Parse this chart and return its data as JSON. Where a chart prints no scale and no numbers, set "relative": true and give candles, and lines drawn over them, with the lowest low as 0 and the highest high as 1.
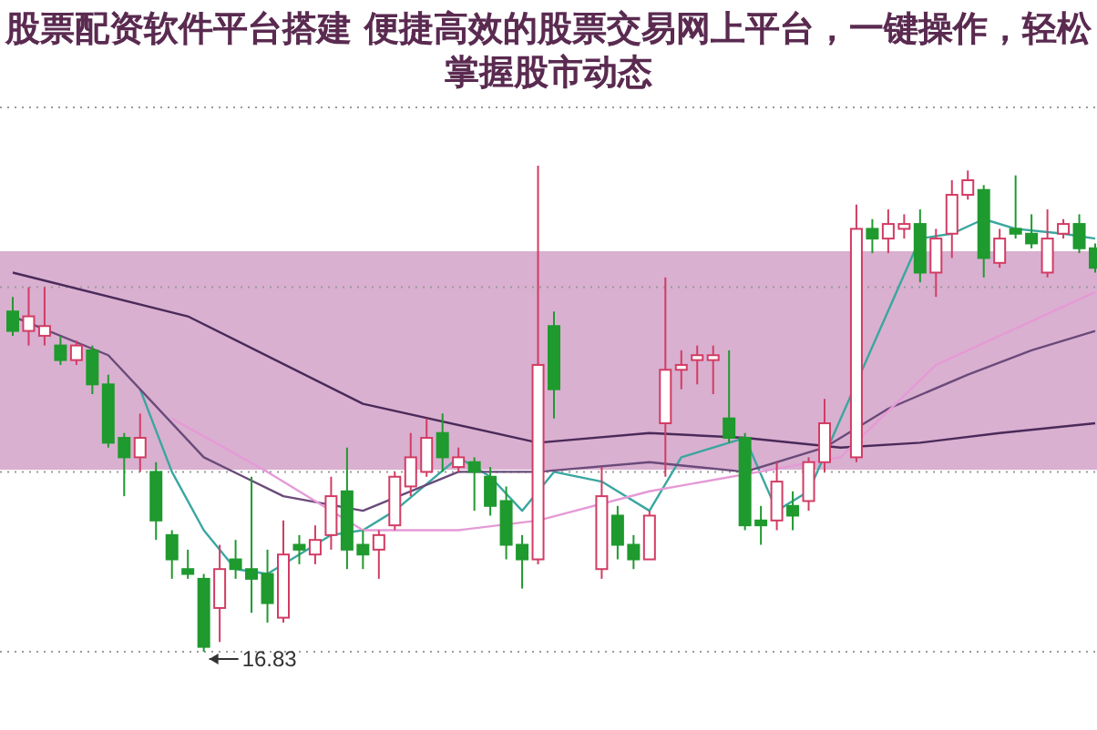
{
  "chart_data": {
    "type": "candlestick",
    "title": "股票配资软件平台搭建 便捷高效的股票交易网上平台，一键操作，轻松掌握股市动态",
    "relative": true,
    "ref_lines": [
      {
        "axis": "y",
        "value": 1.12,
        "color": "#9a9a9a",
        "line_style": "dotted"
      },
      {
        "axis": "y",
        "value": 0.75,
        "color": "#9a9a9a",
        "line_style": "dotted"
      },
      {
        "axis": "y",
        "value": 0.37,
        "color": "#9a9a9a",
        "line_style": "dotted"
      },
      {
        "axis": "y",
        "value": 0,
        "color": "#9a9a9a",
        "line_style": "dotted"
      }
    ],
    "categories": [
      null,
      null,
      null,
      null,
      null,
      null,
      null,
      null,
      null,
      null,
      null,
      null,
      null,
      null,
      null,
      null,
      null,
      null,
      null,
      null,
      null,
      null,
      null,
      null,
      null,
      null,
      null,
      null,
      null,
      null,
      null,
      null,
      null,
      null,
      null,
      null,
      null,
      null,
      null,
      null,
      null,
      null,
      null,
      null,
      null,
      null,
      null,
      null,
      null,
      null,
      null,
      null,
      null,
      null,
      null,
      null,
      null,
      null,
      null,
      null,
      null,
      null,
      null,
      null,
      null,
      null,
      null,
      null,
      null
    ],
    "ohlc": [
      [
        0.7,
        0.73,
        0.65,
        0.66
      ],
      [
        0.66,
        0.75,
        0.63,
        0.69
      ],
      [
        0.65,
        0.75,
        0.63,
        0.67
      ],
      [
        0.63,
        0.65,
        0.59,
        0.6
      ],
      [
        0.6,
        0.64,
        0.59,
        0.63
      ],
      [
        0.62,
        0.63,
        0.53,
        0.55
      ],
      [
        0.55,
        0.57,
        0.42,
        0.43
      ],
      [
        0.44,
        0.45,
        0.32,
        0.4
      ],
      [
        0.4,
        0.49,
        0.37,
        0.44
      ],
      [
        0.37,
        0.39,
        0.23,
        0.27
      ],
      [
        0.24,
        0.25,
        0.15,
        0.19
      ],
      [
        0.17,
        0.21,
        0.15,
        0.16
      ],
      [
        0.15,
        0.16,
        0,
        0.01
      ],
      [
        0.09,
        0.22,
        0.02,
        0.17
      ],
      [
        0.19,
        0.23,
        0.15,
        0.17
      ],
      [
        0.17,
        0.36,
        0.08,
        0.15
      ],
      [
        0.16,
        0.21,
        0.06,
        0.1
      ],
      [
        0.07,
        0.27,
        0.06,
        0.2
      ],
      [
        0.22,
        0.24,
        0.18,
        0.21
      ],
      [
        0.2,
        0.26,
        0.18,
        0.23
      ],
      [
        0.24,
        0.36,
        0.21,
        0.32
      ],
      [
        0.33,
        0.42,
        0.17,
        0.21
      ],
      [
        0.22,
        0.25,
        0.17,
        0.2
      ],
      [
        0.21,
        0.25,
        0.15,
        0.24
      ],
      [
        0.26,
        0.37,
        0.25,
        0.36
      ],
      [
        0.34,
        0.45,
        0.32,
        0.4
      ],
      [
        0.37,
        0.48,
        0.36,
        0.44
      ],
      [
        0.45,
        0.49,
        0.37,
        0.4
      ],
      [
        0.38,
        0.42,
        0.37,
        0.4
      ],
      [
        0.39,
        0.4,
        0.29,
        0.37
      ],
      [
        0.36,
        0.38,
        0.28,
        0.3
      ],
      [
        0.31,
        0.34,
        0.19,
        0.22
      ],
      [
        0.22,
        0.24,
        0.13,
        0.19
      ],
      [
        0.19,
        1,
        0.18,
        0.59
      ],
      [
        0.67,
        0.7,
        0.48,
        0.54
      ],
      null,
      null,
      [
        0.17,
        0.38,
        0.15,
        0.32
      ],
      [
        0.28,
        0.3,
        0.19,
        0.22
      ],
      [
        0.22,
        0.24,
        0.17,
        0.19
      ],
      [
        0.19,
        0.29,
        0.19,
        0.28
      ],
      [
        0.47,
        0.77,
        0.36,
        0.58
      ],
      [
        0.58,
        0.62,
        0.54,
        0.59
      ],
      [
        0.6,
        0.63,
        0.55,
        0.61
      ],
      [
        0.6,
        0.63,
        0.53,
        0.61
      ],
      [
        0.48,
        0.62,
        0.43,
        0.44
      ],
      [
        0.44,
        0.45,
        0.25,
        0.26
      ],
      [
        0.27,
        0.3,
        0.22,
        0.26
      ],
      [
        0.27,
        0.39,
        0.25,
        0.35
      ],
      [
        0.3,
        0.33,
        0.25,
        0.28
      ],
      [
        0.31,
        0.4,
        0.29,
        0.39
      ],
      [
        0.39,
        0.52,
        0.37,
        0.47
      ],
      null,
      [
        0.4,
        0.92,
        0.39,
        0.87
      ],
      [
        0.87,
        0.89,
        0.82,
        0.85
      ],
      [
        0.85,
        0.91,
        0.82,
        0.88
      ],
      [
        0.87,
        0.9,
        0.85,
        0.88
      ],
      [
        0.88,
        0.91,
        0.76,
        0.78
      ],
      [
        0.78,
        0.87,
        0.73,
        0.85
      ],
      [
        0.86,
        0.97,
        0.81,
        0.94
      ],
      [
        0.94,
        0.99,
        0.93,
        0.97
      ],
      [
        0.95,
        0.96,
        0.77,
        0.81
      ],
      [
        0.8,
        0.87,
        0.79,
        0.85
      ],
      [
        0.87,
        0.98,
        0.85,
        0.86
      ],
      [
        0.86,
        0.9,
        0.83,
        0.84
      ],
      [
        0.78,
        0.91,
        0.77,
        0.85
      ],
      [
        0.86,
        0.89,
        0.85,
        0.88
      ],
      [
        0.88,
        0.9,
        0.82,
        0.83
      ],
      [
        0.83,
        0.84,
        0.78,
        0.79
      ]
    ],
    "colors": [
      "#1f9a2e",
      "#d23c64",
      "#d23c64",
      "#1f9a2e",
      "#d23c64",
      "#1f9a2e",
      "#1f9a2e",
      "#1f9a2e",
      "#d23c64",
      "#1f9a2e",
      "#1f9a2e",
      "#1f9a2e",
      "#1f9a2e",
      "#d23c64",
      "#1f9a2e",
      "#1f9a2e",
      "#1f9a2e",
      "#d23c64",
      "#1f9a2e",
      "#d23c64",
      "#d23c64",
      "#1f9a2e",
      "#1f9a2e",
      "#d23c64",
      "#d23c64",
      "#d23c64",
      "#d23c64",
      "#1f9a2e",
      "#d23c64",
      "#1f9a2e",
      "#1f9a2e",
      "#1f9a2e",
      "#1f9a2e",
      "#d23c64",
      "#1f9a2e",
      null,
      null,
      "#d23c64",
      "#1f9a2e",
      "#1f9a2e",
      "#d23c64",
      "#d23c64",
      "#d23c64",
      "#d23c64",
      "#d23c64",
      "#1f9a2e",
      "#1f9a2e",
      "#1f9a2e",
      "#d23c64",
      "#1f9a2e",
      "#d23c64",
      "#d23c64",
      null,
      "#d23c64",
      "#1f9a2e",
      "#d23c64",
      "#d23c64",
      "#1f9a2e",
      "#d23c64",
      "#d23c64",
      "#d23c64",
      "#1f9a2e",
      "#d23c64",
      "#1f9a2e",
      "#1f9a2e",
      "#d23c64",
      "#d23c64",
      "#1f9a2e",
      "#1f9a2e"
    ],
    "series": [
      {
        "type": "line",
        "color": "#3aa6a0",
        "values": [
          null,
          null,
          null,
          null,
          null,
          null,
          null,
          null,
          0.54,
          null,
          0.37,
          null,
          0.25,
          null,
          0.17,
          null,
          0.16,
          null,
          0.2,
          null,
          0.24,
          null,
          0.25,
          null,
          0.29,
          null,
          null,
          null,
          0.4,
          null,
          0.36,
          null,
          0.29,
          null,
          0.37,
          null,
          null,
          0.35,
          null,
          null,
          0.29,
          null,
          0.4,
          null,
          null,
          null,
          0.44,
          null,
          0.29,
          null,
          0.33,
          null,
          null,
          null,
          null,
          null,
          null,
          0.85,
          null,
          0.86,
          null,
          0.89,
          null,
          0.87,
          null,
          null,
          0.86,
          null,
          0.85
        ]
      },
      {
        "type": "line",
        "color": "#6a4a7a",
        "values": [
          0.69,
          null,
          null,
          null,
          null,
          null,
          0.61,
          null,
          null,
          null,
          null,
          null,
          0.4,
          null,
          null,
          null,
          null,
          0.32,
          null,
          null,
          null,
          null,
          0.29,
          null,
          null,
          null,
          null,
          null,
          0.37,
          null,
          null,
          null,
          null,
          0.37,
          null,
          null,
          null,
          null,
          null,
          null,
          0.39,
          null,
          null,
          null,
          null,
          null,
          0.37,
          null,
          null,
          null,
          null,
          0.42,
          null,
          null,
          null,
          0.5,
          null,
          null,
          null,
          null,
          0.57,
          null,
          null,
          null,
          0.62,
          null,
          null,
          null,
          0.66
        ]
      },
      {
        "type": "line",
        "color": "#4a2a5a",
        "values": [
          0.78,
          null,
          null,
          null,
          null,
          null,
          null,
          null,
          null,
          null,
          null,
          0.69,
          null,
          null,
          null,
          null,
          null,
          null,
          null,
          null,
          null,
          null,
          0.51,
          null,
          null,
          null,
          null,
          null,
          null,
          null,
          null,
          null,
          null,
          0.43,
          null,
          null,
          null,
          null,
          null,
          null,
          0.45,
          null,
          null,
          null,
          null,
          null,
          0.44,
          null,
          null,
          null,
          null,
          null,
          0.42,
          null,
          null,
          null,
          null,
          0.43,
          null,
          null,
          null,
          null,
          0.45,
          null,
          null,
          null,
          null,
          null,
          0.47
        ]
      },
      {
        "type": "line",
        "color": "#e59ad6",
        "values": [
          null,
          null,
          null,
          null,
          null,
          null,
          null,
          null,
          null,
          null,
          0.48,
          null,
          null,
          null,
          null,
          null,
          0.37,
          null,
          null,
          null,
          null,
          null,
          0.25,
          null,
          null,
          null,
          null,
          null,
          0.25,
          null,
          null,
          null,
          null,
          0.27,
          null,
          null,
          null,
          null,
          null,
          null,
          0.33,
          null,
          null,
          null,
          null,
          null,
          null,
          null,
          null,
          null,
          null,
          null,
          0.4,
          null,
          null,
          null,
          null,
          null,
          0.59,
          null,
          null,
          null,
          null,
          null,
          null,
          null,
          null,
          null,
          0.74
        ]
      }
    ],
    "annotations": [
      "16.83"
    ]
  }
}
